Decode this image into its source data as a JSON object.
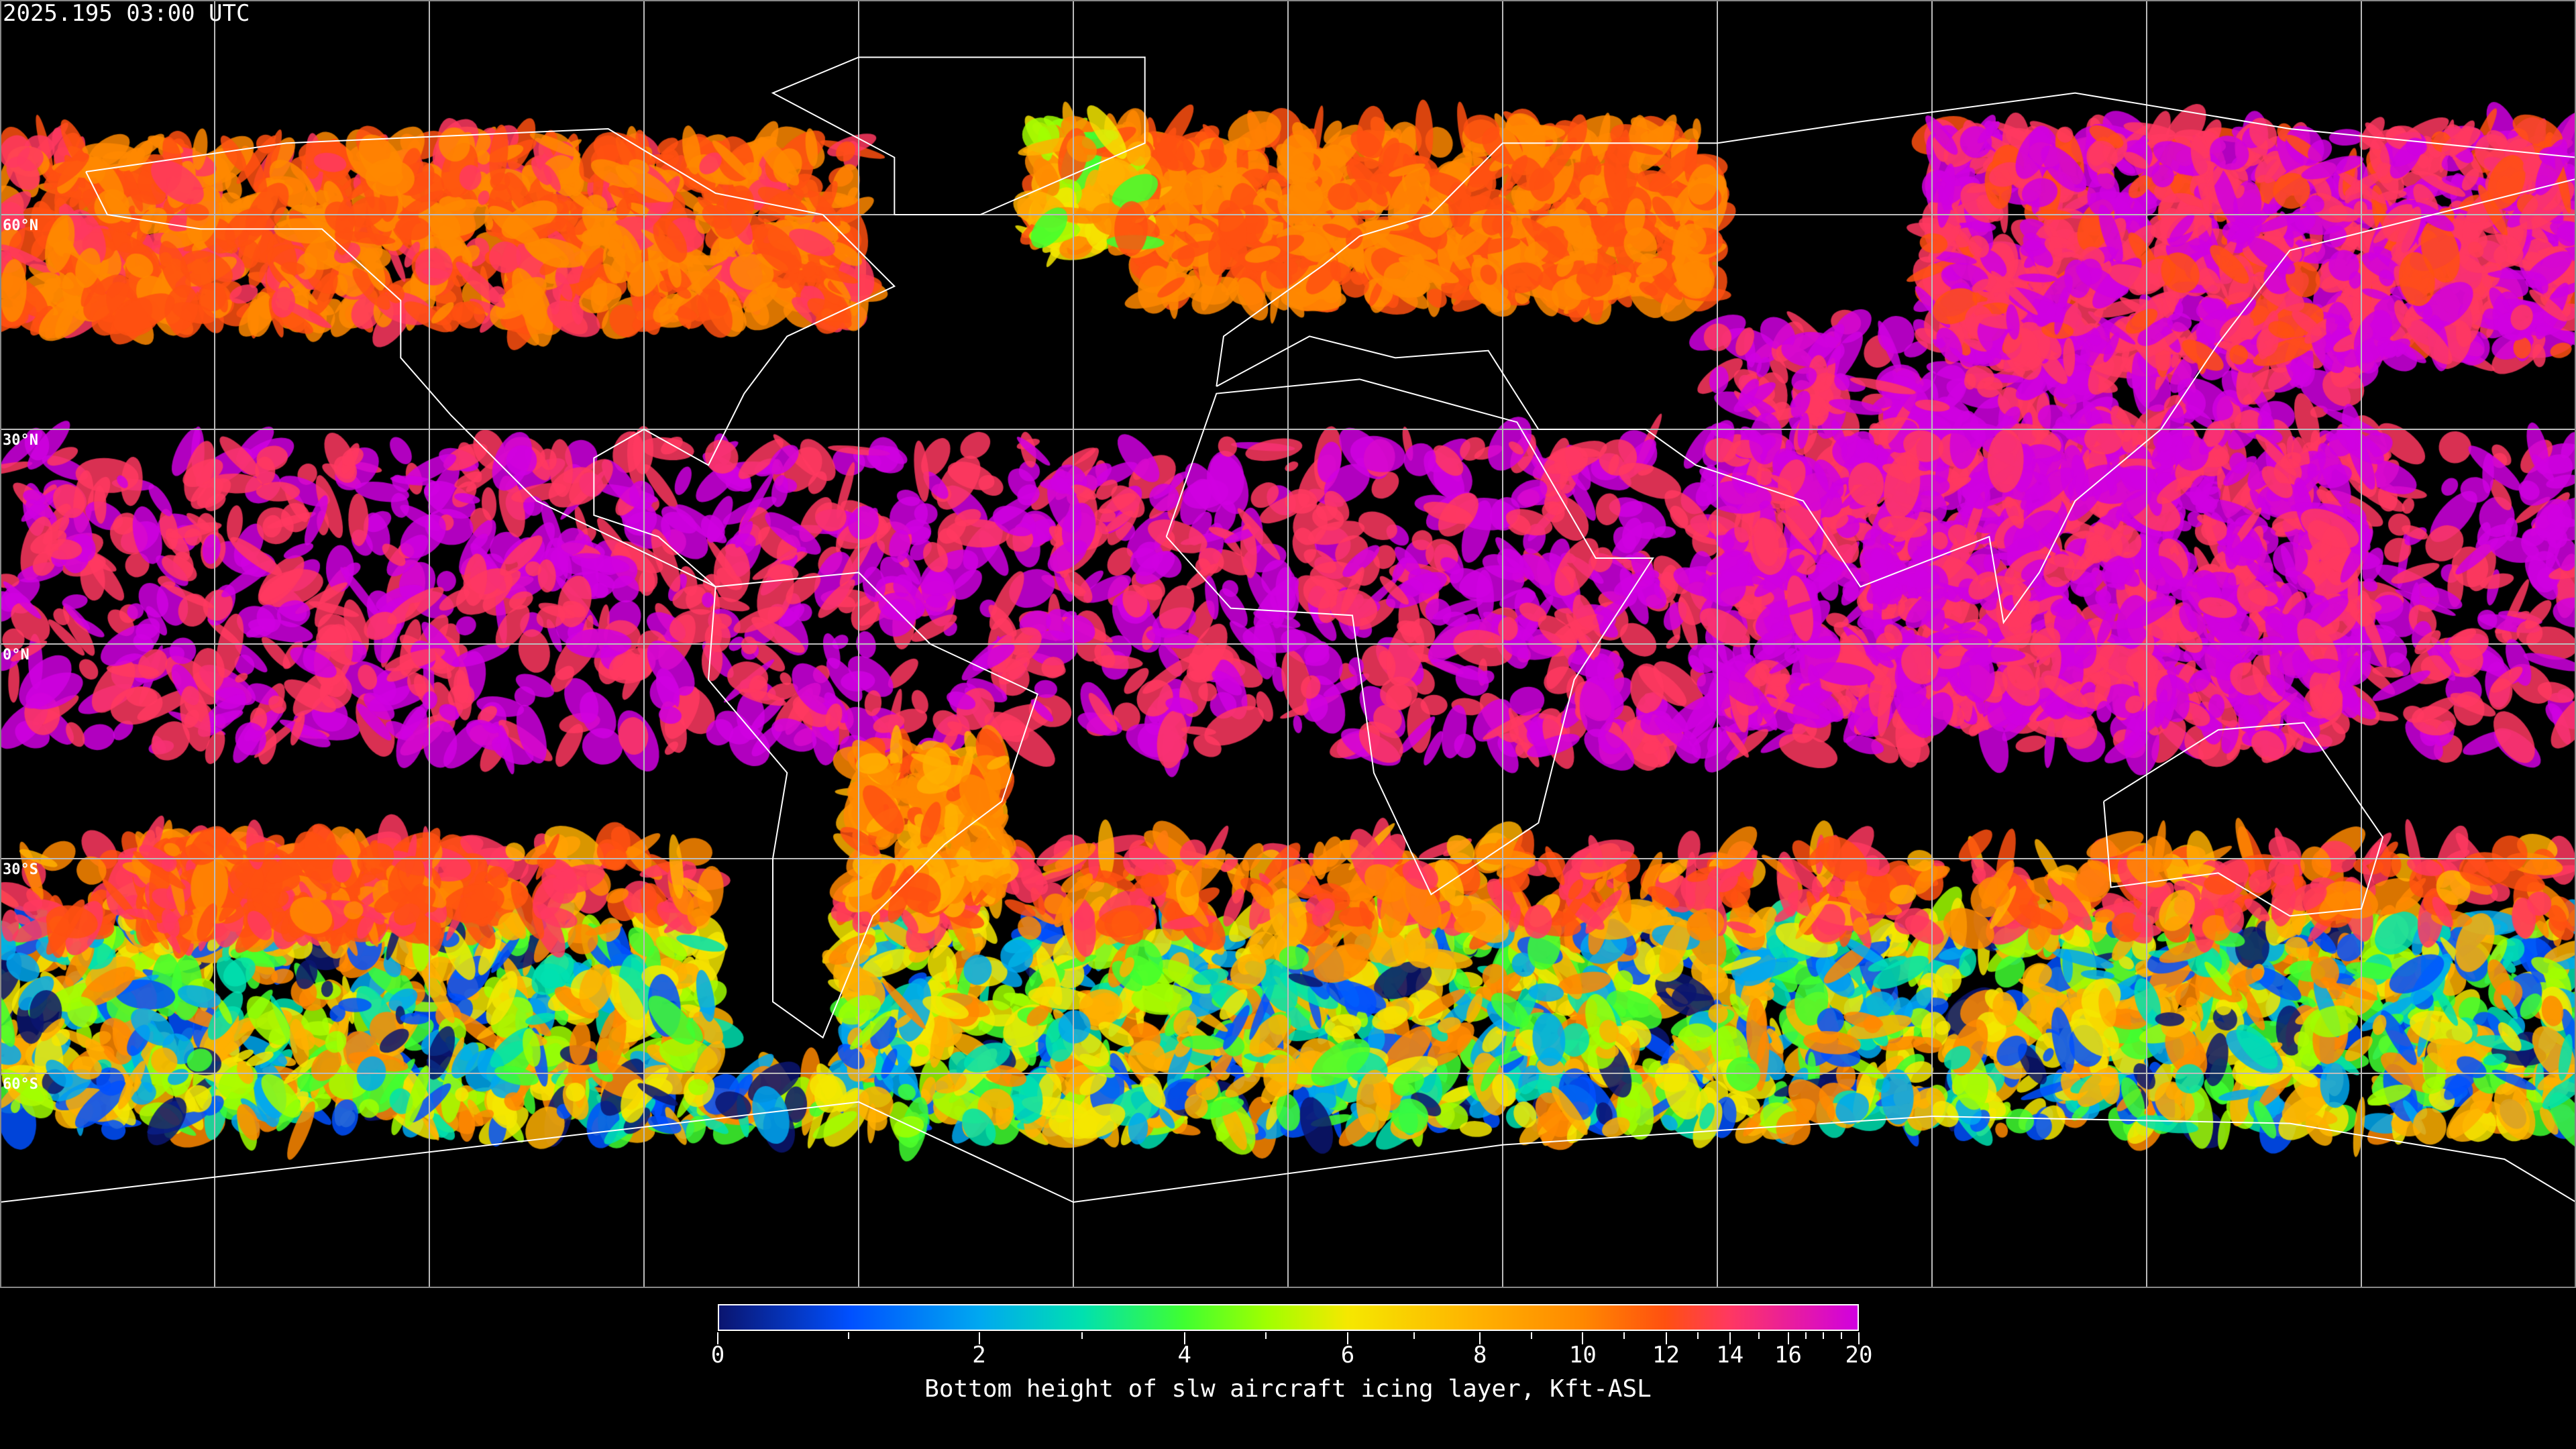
{
  "timestamp": "2025.195 03:00 UTC",
  "lat_labels": [
    {
      "lat": 60,
      "text": "60°N"
    },
    {
      "lat": 30,
      "text": "30°N"
    },
    {
      "lat": 0,
      "text": "0°N"
    },
    {
      "lat": -30,
      "text": "30°S"
    },
    {
      "lat": -60,
      "text": "60°S"
    }
  ],
  "projection": "equirectangular, global, 30° graticule",
  "colors": {
    "background": "#000000",
    "coastline": "#ffffff",
    "graticule": "#bbbbbb"
  },
  "colorbar": {
    "title": "Bottom height of slw aircraft icing layer, Kft-ASL",
    "min": 0,
    "max": 20,
    "major_ticks": [
      0,
      2,
      4,
      6,
      8,
      10,
      12,
      14,
      16,
      20
    ],
    "tick_labels": [
      "0",
      "2",
      "4",
      "6",
      "8",
      "10",
      "12",
      "14",
      "16",
      "20"
    ],
    "minor_ticks": [
      1,
      3,
      5,
      7,
      9,
      11,
      13,
      15,
      17,
      18,
      19
    ],
    "stops": [
      {
        "value": 0,
        "color": "#0a1570"
      },
      {
        "value": 1,
        "color": "#0050ff"
      },
      {
        "value": 2,
        "color": "#00a8f0"
      },
      {
        "value": 3,
        "color": "#00e0b0"
      },
      {
        "value": 4,
        "color": "#40ff30"
      },
      {
        "value": 5,
        "color": "#a0ff00"
      },
      {
        "value": 6,
        "color": "#f5e800"
      },
      {
        "value": 8,
        "color": "#ffb000"
      },
      {
        "value": 10,
        "color": "#ff8800"
      },
      {
        "value": 12,
        "color": "#ff5010"
      },
      {
        "value": 14,
        "color": "#ff3860"
      },
      {
        "value": 20,
        "color": "#d000e0"
      }
    ]
  }
}
